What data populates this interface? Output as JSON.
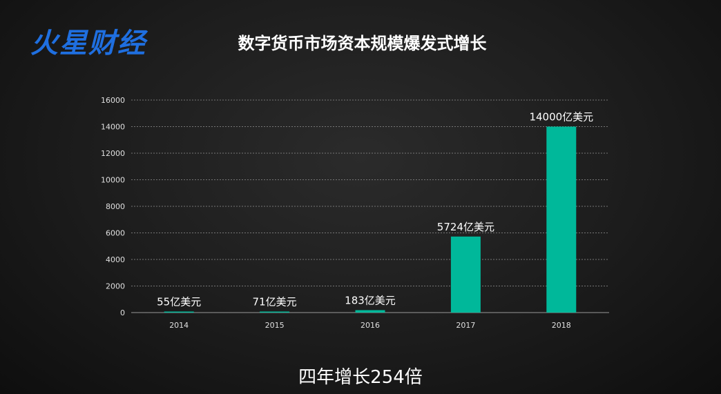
{
  "logo": "火星财经",
  "footer": "四年增长254倍",
  "colors": {
    "bar": "#00b89a",
    "grid": "#777777",
    "axis": "#999999",
    "logo": "#1f6fe0"
  },
  "chart_data": {
    "type": "bar",
    "title": "数字货币市场资本规模爆发式增长",
    "categories": [
      "2014",
      "2015",
      "2016",
      "2017",
      "2018"
    ],
    "values": [
      55,
      71,
      183,
      5724,
      14000
    ],
    "data_labels": [
      "55亿美元",
      "71亿美元",
      "183亿美元",
      "5724亿美元",
      "14000亿美元"
    ],
    "ylim": [
      0,
      16000
    ],
    "yticks": [
      0,
      2000,
      4000,
      6000,
      8000,
      10000,
      12000,
      14000,
      16000
    ],
    "grid": true,
    "legend": "none"
  }
}
